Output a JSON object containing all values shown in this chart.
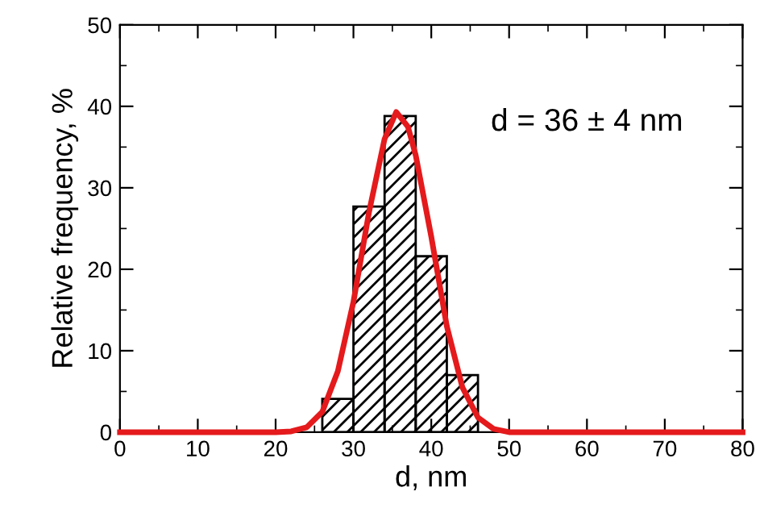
{
  "chart_data": {
    "type": "histogram",
    "xlabel": "d, nm",
    "ylabel": "Relative frequency, %",
    "bins": [
      26,
      30,
      34,
      38,
      42,
      46
    ],
    "values": [
      4.1,
      27.7,
      38.8,
      21.6,
      7.0
    ],
    "series": [
      {
        "type": "line",
        "color": "#e41a1c",
        "x": [
          0,
          20,
          22,
          24,
          26,
          28,
          30,
          32,
          34,
          35.5,
          37,
          38,
          40,
          42,
          44,
          46,
          48,
          50,
          80
        ],
        "values": [
          0,
          0,
          0.1,
          0.6,
          2.5,
          7.5,
          16,
          27,
          36,
          39.3,
          37.5,
          34,
          24,
          13,
          5.5,
          1.8,
          0.4,
          0,
          0
        ]
      }
    ],
    "xlim": [
      0,
      80
    ],
    "xticks": [
      0,
      10,
      20,
      30,
      40,
      50,
      60,
      70,
      80
    ],
    "ylim": [
      0,
      50
    ],
    "yticks": [
      0,
      10,
      20,
      30,
      40,
      50
    ],
    "annotations": [
      "d = 36 ± 4 nm"
    ],
    "grid": false,
    "legend": false
  }
}
